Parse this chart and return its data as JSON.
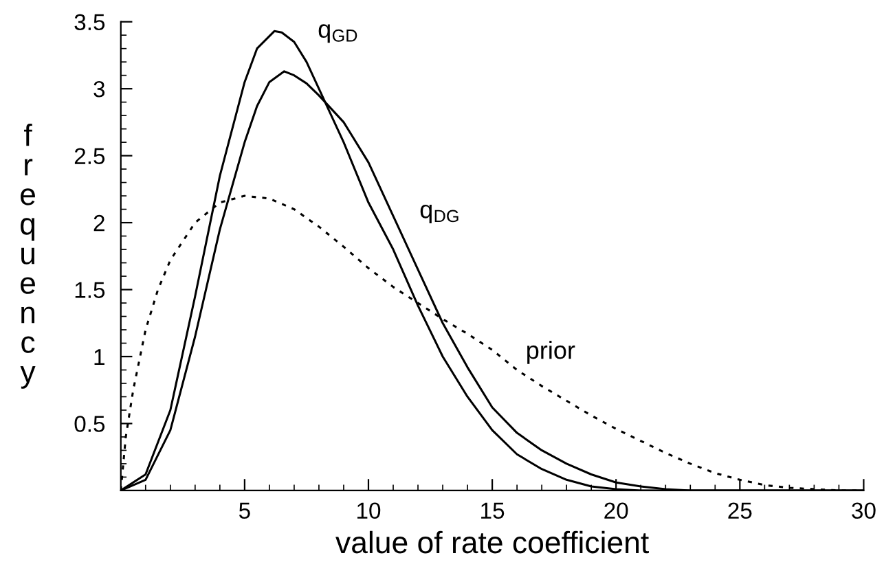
{
  "chart_data": {
    "type": "line",
    "xlabel": "value of rate coefficient",
    "ylabel": "frequency",
    "xlim": [
      0,
      30
    ],
    "ylim": [
      0,
      3.5
    ],
    "xticks": [
      5,
      10,
      15,
      20,
      25,
      30,
      {
        "value": 1,
        "label": null
      },
      {
        "value": 2,
        "label": null
      },
      {
        "value": 3,
        "label": null
      },
      {
        "value": 4,
        "label": null
      },
      {
        "value": 6,
        "label": null
      },
      {
        "value": 7,
        "label": null
      },
      {
        "value": 8,
        "label": null
      },
      {
        "value": 9,
        "label": null
      },
      {
        "value": 11,
        "label": null
      },
      {
        "value": 12,
        "label": null
      },
      {
        "value": 13,
        "label": null
      },
      {
        "value": 14,
        "label": null
      },
      {
        "value": 16,
        "label": null
      },
      {
        "value": 17,
        "label": null
      },
      {
        "value": 18,
        "label": null
      },
      {
        "value": 19,
        "label": null
      },
      {
        "value": 21,
        "label": null
      },
      {
        "value": 22,
        "label": null
      },
      {
        "value": 23,
        "label": null
      },
      {
        "value": 24,
        "label": null
      },
      {
        "value": 26,
        "label": null
      },
      {
        "value": 27,
        "label": null
      },
      {
        "value": 28,
        "label": null
      },
      {
        "value": 29,
        "label": null
      }
    ],
    "yticks": [
      0.5,
      1,
      1.5,
      2,
      2.5,
      3,
      3.5,
      {
        "value": 0.1,
        "label": null
      },
      {
        "value": 0.2,
        "label": null
      },
      {
        "value": 0.3,
        "label": null
      },
      {
        "value": 0.4,
        "label": null
      },
      {
        "value": 0.6,
        "label": null
      },
      {
        "value": 0.7,
        "label": null
      },
      {
        "value": 0.8,
        "label": null
      },
      {
        "value": 0.9,
        "label": null
      },
      {
        "value": 1.1,
        "label": null
      },
      {
        "value": 1.2,
        "label": null
      },
      {
        "value": 1.3,
        "label": null
      },
      {
        "value": 1.4,
        "label": null
      },
      {
        "value": 1.6,
        "label": null
      },
      {
        "value": 1.7,
        "label": null
      },
      {
        "value": 1.8,
        "label": null
      },
      {
        "value": 1.9,
        "label": null
      },
      {
        "value": 2.1,
        "label": null
      },
      {
        "value": 2.2,
        "label": null
      },
      {
        "value": 2.3,
        "label": null
      },
      {
        "value": 2.4,
        "label": null
      },
      {
        "value": 2.6,
        "label": null
      },
      {
        "value": 2.7,
        "label": null
      },
      {
        "value": 2.8,
        "label": null
      },
      {
        "value": 2.9,
        "label": null
      },
      {
        "value": 3.1,
        "label": null
      },
      {
        "value": 3.2,
        "label": null
      },
      {
        "value": 3.3,
        "label": null
      },
      {
        "value": 3.4,
        "label": null
      }
    ],
    "grid": false,
    "marker": "none",
    "series": [
      {
        "name": "q$_{GD}$",
        "color": "#000000",
        "line_style": "solid",
        "x": [
          0,
          1,
          2,
          3,
          4,
          5,
          5.5,
          6.2,
          6.5,
          7,
          7.5,
          8,
          9,
          10,
          11,
          12,
          13,
          14,
          15,
          16,
          17,
          18,
          19,
          20,
          21,
          22,
          23,
          24,
          25,
          26,
          27,
          28,
          29,
          30
        ],
        "values": [
          0,
          0.12,
          0.6,
          1.45,
          2.35,
          3.05,
          3.3,
          3.43,
          3.42,
          3.35,
          3.2,
          3.0,
          2.6,
          2.15,
          1.8,
          1.38,
          1.0,
          0.7,
          0.45,
          0.27,
          0.16,
          0.08,
          0.03,
          0.01,
          0,
          0,
          0,
          0,
          0,
          0,
          0,
          0,
          0,
          0
        ]
      },
      {
        "name": "q$_{DG}$",
        "color": "#000000",
        "line_style": "solid",
        "x": [
          0,
          1,
          2,
          3,
          4,
          5,
          5.5,
          6,
          6.6,
          7,
          7.5,
          8,
          9,
          10,
          11,
          12,
          13,
          14,
          15,
          16,
          17,
          18,
          19,
          20,
          21,
          22,
          23,
          24,
          25,
          26,
          27,
          28,
          29,
          30
        ],
        "values": [
          0,
          0.08,
          0.45,
          1.15,
          1.95,
          2.6,
          2.87,
          3.05,
          3.13,
          3.1,
          3.04,
          2.95,
          2.75,
          2.45,
          2.05,
          1.65,
          1.25,
          0.92,
          0.62,
          0.43,
          0.3,
          0.2,
          0.12,
          0.06,
          0.03,
          0.01,
          0,
          0,
          0,
          0,
          0,
          0,
          0,
          0
        ]
      },
      {
        "name": "prior",
        "color": "#000000",
        "line_style": "dotted",
        "x": [
          0,
          0.2,
          0.5,
          1,
          1.5,
          2,
          3,
          4,
          5,
          6,
          7,
          8,
          9,
          10,
          11,
          12,
          13,
          14,
          15,
          16,
          17,
          18,
          19,
          20,
          21,
          22,
          23,
          24,
          25,
          26,
          27,
          28,
          29,
          30
        ],
        "values": [
          0,
          0.4,
          0.75,
          1.2,
          1.5,
          1.72,
          2.0,
          2.15,
          2.2,
          2.18,
          2.1,
          1.97,
          1.82,
          1.66,
          1.52,
          1.4,
          1.28,
          1.17,
          1.05,
          0.9,
          0.78,
          0.67,
          0.56,
          0.46,
          0.37,
          0.28,
          0.2,
          0.13,
          0.08,
          0.04,
          0.02,
          0.01,
          0,
          0
        ]
      }
    ]
  }
}
